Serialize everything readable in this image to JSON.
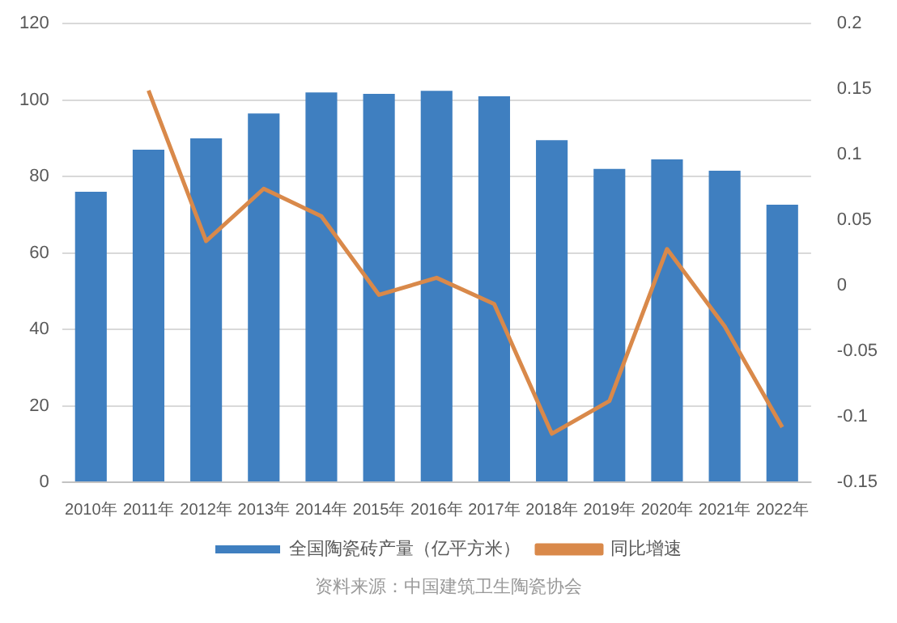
{
  "chart_data": {
    "type": "bar",
    "categories": [
      "2010年",
      "2011年",
      "2012年",
      "2013年",
      "2014年",
      "2015年",
      "2016年",
      "2017年",
      "2018年",
      "2019年",
      "2020年",
      "2021年",
      "2022年"
    ],
    "series": [
      {
        "name": "全国陶瓷砖产量（亿平方米）",
        "color": "#3f7fc0",
        "values": [
          76,
          87,
          90,
          96.5,
          102,
          101.6,
          102.4,
          101,
          89.5,
          82,
          84.5,
          81.5,
          72.6
        ]
      },
      {
        "name": "同比增速",
        "type": "line",
        "axis": "y2",
        "color": "#d9894a",
        "values": [
          null,
          0.149,
          0.034,
          0.074,
          0.053,
          -0.007,
          0.006,
          -0.014,
          -0.113,
          -0.088,
          0.028,
          -0.031,
          -0.108
        ]
      }
    ],
    "ylim": [
      0,
      120
    ],
    "yticks": [
      0,
      20,
      40,
      60,
      80,
      100,
      120
    ],
    "y2lim": [
      -0.15,
      0.2
    ],
    "y2ticks": [
      -0.15,
      -0.1,
      -0.05,
      0,
      0.05,
      0.1,
      0.15,
      0.2
    ],
    "grid": "y",
    "legend": "bottom",
    "marker": "none",
    "line_style": "solid",
    "annotations": [
      "资料来源：中国建筑卫生陶瓷协会"
    ]
  }
}
